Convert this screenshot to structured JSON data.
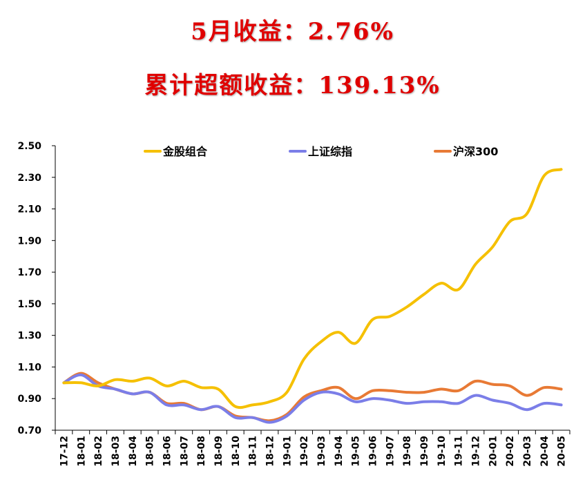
{
  "headline": {
    "monthly_return": "5月收益：2.76%",
    "cumulative_excess": "累计超额收益：139.13%"
  },
  "chart_data": {
    "type": "line",
    "ylim": [
      0.7,
      2.5
    ],
    "yticks": [
      "2.50",
      "2.30",
      "2.10",
      "1.90",
      "1.70",
      "1.50",
      "1.30",
      "1.10",
      "0.90",
      "0.70"
    ],
    "ytick_values": [
      2.5,
      2.3,
      2.1,
      1.9,
      1.7,
      1.5,
      1.3,
      1.1,
      0.9,
      0.7
    ],
    "categories": [
      "17-12",
      "18-01",
      "18-02",
      "18-03",
      "18-04",
      "18-05",
      "18-06",
      "18-07",
      "18-08",
      "18-09",
      "18-10",
      "18-11",
      "18-12",
      "19-01",
      "19-02",
      "19-03",
      "19-04",
      "19-05",
      "19-06",
      "19-07",
      "19-08",
      "19-09",
      "19-10",
      "19-11",
      "19-12",
      "20-01",
      "20-02",
      "20-03",
      "20-04",
      "20-05"
    ],
    "legend_position": "top",
    "grid": false,
    "series": [
      {
        "name": "金股组合",
        "color": "#f5c000",
        "values": [
          1.0,
          1.0,
          0.98,
          1.02,
          1.01,
          1.03,
          0.98,
          1.01,
          0.97,
          0.96,
          0.85,
          0.86,
          0.88,
          0.94,
          1.15,
          1.26,
          1.32,
          1.25,
          1.4,
          1.42,
          1.48,
          1.56,
          1.63,
          1.59,
          1.75,
          1.86,
          2.02,
          2.07,
          2.31,
          2.35
        ]
      },
      {
        "name": "上证综指",
        "color": "#7b7ee8",
        "values": [
          1.0,
          1.05,
          0.98,
          0.96,
          0.93,
          0.94,
          0.86,
          0.86,
          0.83,
          0.85,
          0.78,
          0.78,
          0.75,
          0.79,
          0.89,
          0.94,
          0.93,
          0.88,
          0.9,
          0.89,
          0.87,
          0.88,
          0.88,
          0.87,
          0.92,
          0.89,
          0.87,
          0.83,
          0.87,
          0.86
        ]
      },
      {
        "name": "沪深300",
        "color": "#e87a35",
        "values": [
          1.0,
          1.06,
          1.0,
          0.96,
          0.93,
          0.94,
          0.87,
          0.87,
          0.83,
          0.85,
          0.79,
          0.78,
          0.76,
          0.8,
          0.91,
          0.95,
          0.97,
          0.9,
          0.95,
          0.95,
          0.94,
          0.94,
          0.96,
          0.95,
          1.01,
          0.99,
          0.98,
          0.92,
          0.97,
          0.96
        ]
      }
    ]
  }
}
